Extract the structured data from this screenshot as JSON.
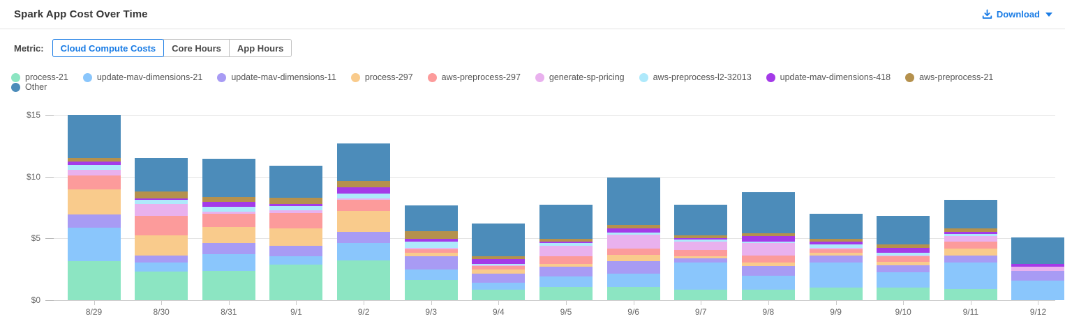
{
  "header": {
    "title": "Spark App Cost Over Time",
    "download_label": "Download"
  },
  "metric": {
    "label": "Metric:",
    "options": [
      {
        "label": "Cloud Compute Costs",
        "selected": true
      },
      {
        "label": "Core Hours",
        "selected": false
      },
      {
        "label": "App Hours",
        "selected": false
      }
    ]
  },
  "accent_color": "#1a7ce5",
  "chart_data": {
    "type": "bar",
    "stacked": true,
    "title": "Spark App Cost Over Time",
    "xlabel": "",
    "ylabel": "",
    "ylim": [
      0,
      15
    ],
    "y_gridlines": [
      0,
      5,
      10,
      15
    ],
    "y_tick_labels": [
      "$0",
      "$5",
      "$10",
      "$15"
    ],
    "grid": true,
    "legend_position": "top",
    "categories": [
      "8/29",
      "8/30",
      "8/31",
      "9/1",
      "9/2",
      "9/3",
      "9/4",
      "9/5",
      "9/6",
      "9/7",
      "9/8",
      "9/9",
      "9/10",
      "9/11",
      "9/12"
    ],
    "series": [
      {
        "name": "process-21",
        "color": "#8ce5c2",
        "values": [
          3.16,
          2.31,
          2.35,
          2.88,
          3.21,
          1.65,
          0.85,
          1.09,
          1.09,
          0.85,
          0.85,
          1.03,
          1.0,
          0.9,
          0.0
        ]
      },
      {
        "name": "update-mav-dimensions-21",
        "color": "#8ac6fc",
        "values": [
          2.72,
          0.75,
          1.37,
          0.66,
          1.4,
          0.81,
          0.56,
          0.85,
          1.07,
          2.18,
          1.12,
          2.0,
          1.27,
          2.13,
          1.6
        ]
      },
      {
        "name": "update-mav-dimensions-11",
        "color": "#a89bf4",
        "values": [
          1.04,
          0.56,
          0.88,
          0.84,
          0.93,
          1.08,
          0.72,
          0.75,
          1.0,
          0.37,
          0.81,
          0.6,
          0.57,
          0.6,
          0.75
        ]
      },
      {
        "name": "process-297",
        "color": "#f9cb8c",
        "values": [
          2.06,
          1.6,
          1.31,
          1.41,
          1.66,
          0.31,
          0.33,
          0.23,
          0.51,
          0.14,
          0.25,
          0.22,
          0.26,
          0.53,
          0.0
        ]
      },
      {
        "name": "aws-preprocess-297",
        "color": "#fc9b9b",
        "values": [
          1.13,
          1.6,
          1.09,
          1.26,
          0.95,
          0.25,
          0.29,
          0.62,
          0.49,
          0.5,
          0.6,
          0.25,
          0.48,
          0.6,
          0.0
        ]
      },
      {
        "name": "generate-sp-pricing",
        "color": "#e9b1ee",
        "values": [
          0.42,
          0.94,
          0.15,
          0.24,
          0.1,
          0.13,
          0.05,
          0.88,
          1.12,
          0.72,
          0.98,
          0.13,
          0.05,
          0.41,
          0.34
        ]
      },
      {
        "name": "aws-preprocess-l2-32013",
        "color": "#aee9fb",
        "values": [
          0.43,
          0.34,
          0.41,
          0.32,
          0.38,
          0.49,
          0.13,
          0.21,
          0.19,
          0.15,
          0.11,
          0.3,
          0.22,
          0.19,
          0.0
        ]
      },
      {
        "name": "update-mav-dimensions-418",
        "color": "#a43ae8",
        "values": [
          0.25,
          0.13,
          0.38,
          0.19,
          0.51,
          0.26,
          0.41,
          0.13,
          0.32,
          0.13,
          0.45,
          0.19,
          0.4,
          0.18,
          0.23
        ]
      },
      {
        "name": "aws-preprocess-21",
        "color": "#b5914d",
        "values": [
          0.32,
          0.56,
          0.41,
          0.49,
          0.52,
          0.59,
          0.19,
          0.22,
          0.28,
          0.22,
          0.24,
          0.26,
          0.26,
          0.25,
          0.0
        ]
      },
      {
        "name": "Other",
        "color": "#4c8cba",
        "values": [
          3.47,
          2.72,
          3.1,
          2.58,
          3.01,
          2.1,
          2.65,
          2.75,
          3.87,
          2.47,
          3.33,
          2.03,
          2.31,
          2.35,
          2.16
        ]
      }
    ]
  }
}
